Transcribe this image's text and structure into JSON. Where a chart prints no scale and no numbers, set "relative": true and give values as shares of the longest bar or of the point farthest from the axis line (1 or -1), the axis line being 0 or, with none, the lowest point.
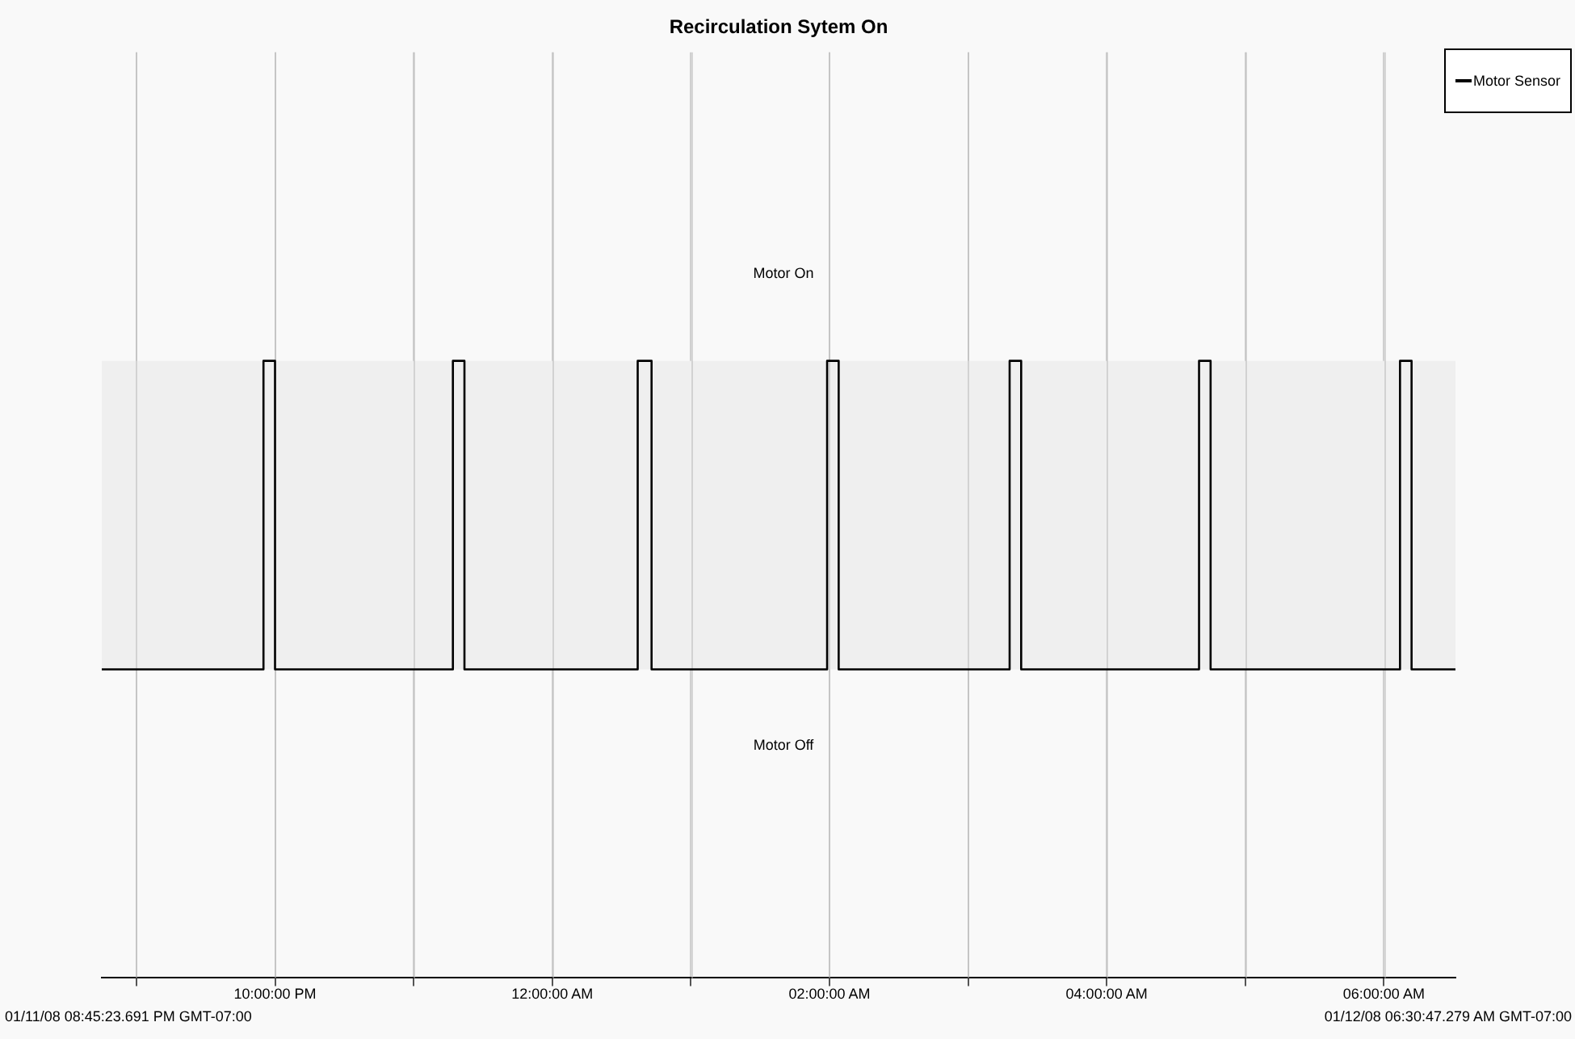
{
  "chart_data": {
    "type": "step",
    "title": "Recirculation Sytem On",
    "relative": true,
    "x": [
      "--01-11T20:45",
      "--01-11T21:55",
      "--01-11T22:00",
      "--01-11T23:17",
      "--01-11T23:22",
      "--01-12T00:37",
      "--01-12T00:43",
      "--01-12T01:59",
      "--01-12T02:04",
      "--01-12T03:18",
      "--01-12T03:23",
      "--01-12T04:40",
      "--01-12T04:45",
      "--01-12T06:07",
      "--01-12T06:12",
      "--01-12T06:31"
    ],
    "series": [
      {
        "name": "Motor Sensor",
        "color": "#000000",
        "values": [
          0,
          1,
          0,
          1,
          0,
          1,
          0,
          1,
          0,
          1,
          0,
          1,
          0,
          1,
          0,
          0
        ]
      }
    ],
    "xlim": [
      "--01-11T20:45",
      "--01-12T06:31"
    ],
    "xticks": [
      {
        "value": "--01-11T21:00",
        "label": null
      },
      {
        "value": "--01-11T22:00",
        "label": "10:00:00 PM"
      },
      {
        "value": "--01-11T23:00",
        "label": null
      },
      {
        "value": "--01-12T00:00",
        "label": "12:00:00 AM"
      },
      {
        "value": "--01-12T01:00",
        "label": null
      },
      {
        "value": "--01-12T02:00",
        "label": "02:00:00 AM"
      },
      {
        "value": "--01-12T03:00",
        "label": null
      },
      {
        "value": "--01-12T04:00",
        "label": "04:00:00 AM"
      },
      {
        "value": "--01-12T05:00",
        "label": null
      },
      {
        "value": "--01-12T06:00",
        "label": "06:00:00 AM"
      }
    ],
    "bands": [
      {
        "axis": "y",
        "from": 0,
        "to": 1,
        "color": "#efefef"
      }
    ],
    "annotations": [
      "Motor On",
      "Motor Off",
      "01/11/08 08:45:23.691 PM GMT-07:00",
      "01/12/08 06:30:47.279 AM GMT-07:00"
    ],
    "grid": "x",
    "legend": "top right",
    "marker": "none",
    "line_style": "solid"
  }
}
